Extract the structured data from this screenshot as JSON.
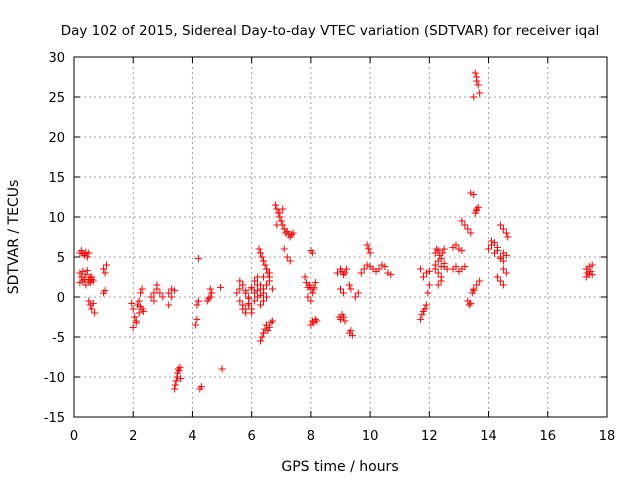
{
  "chart_data": {
    "type": "scatter",
    "title": "Day 102 of 2015, Sidereal Day-to-day VTEC variation (SDTVAR) for receiver iqal",
    "xlabel": "GPS time / hours",
    "ylabel": "SDTVAR / TECUs",
    "xlim": [
      0,
      18
    ],
    "ylim": [
      -15,
      30
    ],
    "xticks": [
      "0",
      "2",
      "4",
      "6",
      "8",
      "10",
      "12",
      "14",
      "16",
      "18"
    ],
    "yticks": [
      "-15",
      "-10",
      "-5",
      "0",
      "5",
      "10",
      "15",
      "20",
      "25",
      "30"
    ],
    "grid": true,
    "marker": "plus",
    "color": "#ff0000",
    "series": [
      {
        "name": "SDTVAR",
        "x": [
          0.2,
          0.25,
          0.3,
          0.35,
          0.4,
          0.45,
          0.5,
          0.2,
          0.25,
          0.3,
          0.35,
          0.4,
          0.45,
          0.5,
          0.55,
          0.6,
          0.2,
          0.3,
          0.4,
          0.5,
          0.55,
          0.6,
          0.65,
          0.5,
          0.55,
          0.6,
          0.65,
          0.7,
          1.0,
          1.05,
          1.1,
          1.0,
          1.05,
          1.95,
          2.0,
          2.05,
          2.1,
          2.15,
          2.2,
          2.25,
          2.3,
          2.35,
          2.0,
          2.1,
          2.2,
          2.3,
          2.25,
          2.6,
          2.7,
          2.8,
          2.9,
          3.0,
          2.7,
          2.8,
          3.2,
          3.3,
          3.4,
          3.3,
          3.2,
          3.4,
          3.42,
          3.45,
          3.48,
          3.5,
          3.52,
          3.55,
          3.58,
          3.6,
          4.1,
          4.15,
          4.2,
          4.15,
          4.2,
          4.25,
          4.3,
          4.5,
          4.55,
          4.6,
          4.65,
          4.6,
          4.95,
          5.0,
          5.5,
          5.6,
          5.7,
          5.8,
          5.9,
          6.0,
          6.1,
          6.2,
          6.3,
          6.4,
          5.6,
          5.7,
          5.8,
          5.9,
          6.0,
          6.1,
          6.2,
          6.3,
          6.4,
          6.5,
          5.6,
          5.7,
          5.8,
          5.9,
          6.0,
          6.1,
          6.2,
          6.3,
          6.4,
          6.5,
          6.6,
          5.7,
          5.8,
          5.9,
          6.0,
          6.2,
          6.3,
          6.4,
          6.25,
          6.3,
          6.35,
          6.4,
          6.45,
          6.5,
          6.55,
          6.6,
          6.5,
          6.6,
          6.7,
          6.3,
          6.35,
          6.4,
          6.45,
          6.5,
          6.55,
          6.6,
          6.65,
          6.7,
          6.8,
          6.85,
          6.9,
          6.95,
          7.0,
          7.05,
          7.1,
          7.15,
          7.2,
          7.25,
          7.3,
          7.35,
          7.4,
          6.85,
          6.95,
          7.05,
          7.1,
          7.2,
          7.3,
          7.8,
          7.85,
          7.9,
          7.95,
          8.0,
          8.05,
          8.1,
          8.15,
          7.9,
          8.0,
          8.1,
          8.0,
          8.05,
          8.1,
          8.15,
          8.2,
          8.0,
          8.05,
          8.9,
          9.0,
          9.05,
          9.1,
          9.15,
          9.2,
          8.95,
          9.0,
          9.05,
          9.1,
          9.15,
          9.3,
          9.35,
          9.4,
          9.5,
          9.6,
          9.0,
          9.1,
          9.3,
          9.35,
          9.7,
          9.8,
          9.9,
          10.0,
          10.1,
          10.2,
          10.3,
          10.4,
          10.5,
          10.6,
          10.7,
          9.9,
          9.95,
          10.0,
          11.7,
          11.75,
          11.8,
          11.85,
          11.9,
          11.95,
          12.0,
          11.8,
          11.9,
          12.0,
          11.7,
          12.2,
          12.25,
          12.3,
          12.35,
          12.4,
          12.45,
          12.5,
          12.2,
          12.3,
          12.4,
          12.5,
          12.3,
          12.4,
          12.2,
          12.3,
          12.4,
          12.5,
          12.6,
          12.8,
          12.9,
          13.0,
          13.1,
          13.2,
          12.8,
          12.9,
          13.0,
          13.1,
          13.1,
          13.2,
          13.3,
          13.4,
          13.3,
          13.35,
          13.4,
          13.4,
          13.5,
          13.6,
          13.55,
          13.6,
          13.65,
          13.5,
          13.6,
          13.7,
          13.45,
          13.5,
          13.5,
          13.55,
          13.6,
          13.65,
          13.7,
          13.6,
          14.0,
          14.1,
          14.2,
          14.3,
          14.4,
          14.5,
          14.6,
          14.1,
          14.2,
          14.3,
          14.4,
          14.5,
          14.4,
          14.5,
          14.6,
          14.65,
          14.5,
          14.6,
          14.3,
          14.4,
          14.5,
          17.3,
          17.35,
          17.4,
          17.45,
          17.5,
          17.3,
          17.4,
          17.5
        ],
        "y": [
          5.5,
          5.8,
          5.4,
          5.2,
          5.6,
          5.0,
          5.5,
          3.0,
          2.5,
          3.2,
          2.2,
          2.8,
          3.3,
          2.0,
          2.5,
          2.2,
          1.8,
          2.0,
          1.5,
          2.2,
          1.8,
          2.5,
          2.0,
          -0.5,
          -1.0,
          -1.5,
          -0.8,
          -2.0,
          3.5,
          3.0,
          4.0,
          0.5,
          0.8,
          -0.8,
          -1.5,
          -2.5,
          -3.0,
          -1.0,
          -2.0,
          -1.2,
          -1.5,
          -1.8,
          -3.8,
          -3.2,
          -0.5,
          1.0,
          0.5,
          0.0,
          0.5,
          1.0,
          0.5,
          0.0,
          -0.5,
          1.5,
          0.5,
          1.0,
          0.8,
          0.0,
          -1.0,
          -11.5,
          -11.0,
          -10.5,
          -10.0,
          -9.5,
          -9.0,
          -9.2,
          -8.8,
          -10.2,
          -3.5,
          -2.8,
          -0.5,
          -1.0,
          4.8,
          -11.5,
          -11.2,
          -0.5,
          -0.2,
          0.0,
          0.5,
          1.0,
          1.2,
          -9.0,
          0.5,
          1.0,
          1.5,
          0.8,
          0.0,
          1.2,
          0.5,
          1.5,
          0.2,
          1.0,
          -0.5,
          -1.0,
          -1.5,
          -0.8,
          -2.0,
          -0.5,
          0.0,
          -1.0,
          0.5,
          1.5,
          2.0,
          1.5,
          0.5,
          -0.2,
          1.0,
          2.0,
          2.5,
          1.0,
          -0.5,
          0.0,
          3.0,
          -1.5,
          -2.0,
          -1.0,
          -1.5,
          0.8,
          1.5,
          2.5,
          6.0,
          5.5,
          5.0,
          4.5,
          4.0,
          3.5,
          3.0,
          2.5,
          1.5,
          2.0,
          1.0,
          -5.5,
          -5.0,
          -4.5,
          -4.0,
          -3.5,
          -4.2,
          -3.8,
          -3.2,
          -3.0,
          11.5,
          11.0,
          10.5,
          10.0,
          9.5,
          9.0,
          8.5,
          8.0,
          8.2,
          7.8,
          7.5,
          7.8,
          8.0,
          9.0,
          10.5,
          11.0,
          6.0,
          5.0,
          4.5,
          2.5,
          1.8,
          1.2,
          1.5,
          1.0,
          0.5,
          1.2,
          1.8,
          0.0,
          -0.5,
          1.0,
          -3.5,
          -3.0,
          -3.2,
          -2.8,
          -3.0,
          5.8,
          5.5,
          3.0,
          3.5,
          3.2,
          2.8,
          3.0,
          3.5,
          -2.5,
          -2.8,
          -2.2,
          -2.5,
          -3.0,
          -4.5,
          -4.2,
          -4.8,
          0.0,
          0.5,
          1.0,
          0.5,
          1.5,
          1.0,
          3.0,
          3.5,
          4.0,
          3.8,
          3.5,
          3.2,
          3.5,
          4.0,
          3.8,
          3.0,
          2.8,
          6.5,
          6.0,
          5.5,
          -2.8,
          -2.2,
          -1.8,
          -1.5,
          -1.0,
          0.5,
          1.5,
          2.5,
          3.0,
          3.2,
          3.5,
          5.5,
          6.0,
          5.8,
          5.2,
          4.8,
          5.5,
          6.0,
          3.5,
          3.0,
          2.5,
          3.8,
          1.5,
          2.0,
          4.0,
          4.5,
          3.8,
          4.2,
          3.5,
          3.5,
          3.8,
          3.2,
          3.5,
          3.8,
          6.2,
          6.5,
          6.0,
          5.8,
          9.5,
          9.0,
          8.5,
          8.0,
          -0.5,
          -1.0,
          -0.8,
          13.0,
          12.8,
          11.0,
          10.5,
          10.8,
          11.2,
          1.0,
          1.5,
          2.0,
          0.5,
          0.8,
          25.0,
          28.0,
          27.5,
          26.5,
          25.5,
          27.0,
          6.0,
          6.5,
          5.5,
          6.2,
          5.0,
          4.5,
          5.2,
          7.0,
          6.8,
          5.8,
          4.8,
          5.5,
          9.0,
          8.5,
          8.0,
          7.5,
          3.5,
          3.0,
          2.5,
          2.0,
          1.5,
          3.5,
          3.0,
          2.8,
          3.2,
          4.0,
          2.5,
          3.8,
          2.8
        ]
      }
    ]
  }
}
